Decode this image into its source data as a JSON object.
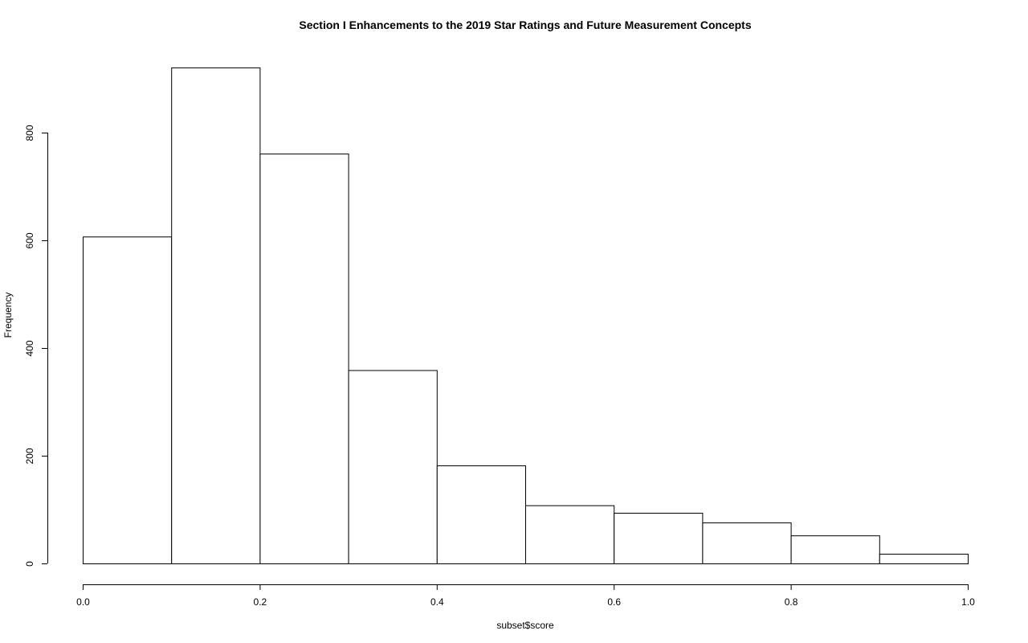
{
  "chart_data": {
    "type": "bar",
    "title": "Section I Enhancements to the 2019 Star Ratings and Future Measurement Concepts",
    "xlabel": "subset$score",
    "ylabel": "Frequency",
    "bin_edges": [
      0.0,
      0.1,
      0.2,
      0.3,
      0.4,
      0.5,
      0.6,
      0.7,
      0.8,
      0.9,
      1.0
    ],
    "values": [
      607,
      921,
      761,
      359,
      182,
      108,
      94,
      76,
      52,
      18
    ],
    "xlim": [
      0.0,
      1.0
    ],
    "ylim": [
      0,
      920
    ],
    "x_ticks": [
      "0.0",
      "0.2",
      "0.4",
      "0.6",
      "0.8",
      "1.0"
    ],
    "y_ticks": [
      "0",
      "200",
      "400",
      "600",
      "800"
    ],
    "grid": false,
    "colors": {
      "bar_fill": "#ffffff",
      "bar_stroke": "#000000"
    }
  }
}
